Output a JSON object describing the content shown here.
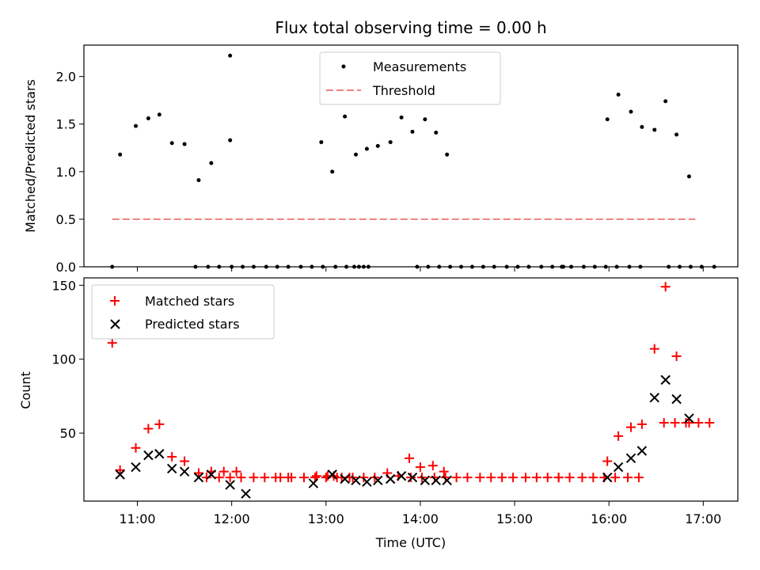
{
  "chart_data": [
    {
      "type": "scatter",
      "title": "Flux total observing time = 0.00 h",
      "ylabel": "Matched/Predicted stars",
      "xlabel": "",
      "ylim": [
        0,
        2.33
      ],
      "y_ticks": [
        0.0,
        0.5,
        1.0,
        1.5,
        2.0
      ],
      "y_tick_labels": [
        "0.0",
        "0.5",
        "1.0",
        "1.5",
        "2.0"
      ],
      "legend_position": "top-center",
      "grid": false,
      "series": [
        {
          "name": "Measurements",
          "marker": "dot",
          "color": "#000000",
          "points": [
            [
              "10:44",
              0.0
            ],
            [
              "10:49",
              1.18
            ],
            [
              "10:59",
              1.48
            ],
            [
              "11:07",
              1.56
            ],
            [
              "11:14",
              1.6
            ],
            [
              "11:22",
              1.3
            ],
            [
              "11:30",
              1.29
            ],
            [
              "11:39",
              0.91
            ],
            [
              "11:47",
              1.09
            ],
            [
              "11:37",
              0.0
            ],
            [
              "11:45",
              0.0
            ],
            [
              "11:52",
              0.0
            ],
            [
              "12:00",
              0.0
            ],
            [
              "12:07",
              0.0
            ],
            [
              "12:14",
              0.0
            ],
            [
              "12:22",
              0.0
            ],
            [
              "11:59",
              1.33
            ],
            [
              "11:59",
              2.22
            ],
            [
              "12:29",
              0.0
            ],
            [
              "12:36",
              0.0
            ],
            [
              "12:44",
              0.0
            ],
            [
              "12:51",
              0.0
            ],
            [
              "12:58",
              0.0
            ],
            [
              "13:06",
              0.0
            ],
            [
              "13:13",
              0.0
            ],
            [
              "13:18",
              0.0
            ],
            [
              "13:21",
              0.0
            ],
            [
              "13:24",
              0.0
            ],
            [
              "13:27",
              0.0
            ],
            [
              "12:57",
              1.31
            ],
            [
              "13:04",
              1.0
            ],
            [
              "13:12",
              1.58
            ],
            [
              "13:19",
              1.18
            ],
            [
              "13:26",
              1.24
            ],
            [
              "13:33",
              1.27
            ],
            [
              "13:41",
              1.31
            ],
            [
              "13:48",
              1.57
            ],
            [
              "13:55",
              1.42
            ],
            [
              "14:03",
              1.55
            ],
            [
              "14:10",
              1.41
            ],
            [
              "14:17",
              1.18
            ],
            [
              "13:58",
              0.0
            ],
            [
              "14:05",
              0.0
            ],
            [
              "14:12",
              0.0
            ],
            [
              "14:19",
              0.0
            ],
            [
              "14:26",
              0.0
            ],
            [
              "14:33",
              0.0
            ],
            [
              "14:40",
              0.0
            ],
            [
              "14:47",
              0.0
            ],
            [
              "14:55",
              0.0
            ],
            [
              "15:02",
              0.0
            ],
            [
              "15:09",
              0.0
            ],
            [
              "15:17",
              0.0
            ],
            [
              "15:24",
              0.0
            ],
            [
              "15:31",
              0.0
            ],
            [
              "15:30",
              0.0
            ],
            [
              "15:36",
              0.0
            ],
            [
              "15:44",
              0.0
            ],
            [
              "15:51",
              0.0
            ],
            [
              "15:58",
              0.0
            ],
            [
              "16:05",
              0.0
            ],
            [
              "16:13",
              0.0
            ],
            [
              "16:20",
              0.0
            ],
            [
              "15:59",
              1.55
            ],
            [
              "16:06",
              1.81
            ],
            [
              "16:14",
              1.63
            ],
            [
              "16:21",
              1.47
            ],
            [
              "16:29",
              1.44
            ],
            [
              "16:36",
              1.74
            ],
            [
              "16:43",
              1.39
            ],
            [
              "16:51",
              0.95
            ],
            [
              "16:38",
              0.0
            ],
            [
              "16:45",
              0.0
            ],
            [
              "16:52",
              0.0
            ],
            [
              "16:59",
              0.0
            ],
            [
              "17:07",
              0.0
            ]
          ]
        },
        {
          "name": "Threshold",
          "marker": "dashed-line",
          "color": "#f08080",
          "points": [
            [
              "10:44",
              0.5
            ],
            [
              "16:55",
              0.5
            ]
          ]
        }
      ]
    },
    {
      "type": "scatter",
      "xlabel": "Time (UTC)",
      "ylabel": "Count",
      "xlim": [
        "10:26",
        "17:22"
      ],
      "ylim": [
        4,
        155
      ],
      "x_tick_labels": [
        "11:00",
        "12:00",
        "13:00",
        "14:00",
        "15:00",
        "16:00",
        "17:00"
      ],
      "y_ticks": [
        50,
        100,
        150
      ],
      "y_tick_labels": [
        "50",
        "100",
        "150"
      ],
      "legend_position": "top-left",
      "grid": false,
      "series": [
        {
          "name": "Matched stars",
          "marker": "plus",
          "color": "#ff0000",
          "points": [
            [
              "10:44",
              111
            ],
            [
              "10:49",
              25
            ],
            [
              "10:59",
              40
            ],
            [
              "11:07",
              53
            ],
            [
              "11:14",
              56
            ],
            [
              "11:22",
              34
            ],
            [
              "11:30",
              31
            ],
            [
              "11:39",
              23
            ],
            [
              "11:47",
              24
            ],
            [
              "11:55",
              24
            ],
            [
              "12:03",
              24
            ],
            [
              "11:44",
              20
            ],
            [
              "11:52",
              20
            ],
            [
              "11:59",
              20
            ],
            [
              "12:06",
              20
            ],
            [
              "12:14",
              20
            ],
            [
              "12:21",
              20
            ],
            [
              "12:28",
              20
            ],
            [
              "12:36",
              20
            ],
            [
              "12:31",
              20
            ],
            [
              "12:38",
              20
            ],
            [
              "12:46",
              20
            ],
            [
              "12:53",
              20
            ],
            [
              "13:00",
              20
            ],
            [
              "13:07",
              20
            ],
            [
              "13:15",
              20
            ],
            [
              "12:54",
              21
            ],
            [
              "13:01",
              21
            ],
            [
              "13:05",
              21
            ],
            [
              "13:10",
              20
            ],
            [
              "13:17",
              20
            ],
            [
              "13:24",
              20
            ],
            [
              "13:31",
              20
            ],
            [
              "13:39",
              23
            ],
            [
              "13:46",
              21
            ],
            [
              "13:53",
              33
            ],
            [
              "14:00",
              27
            ],
            [
              "14:08",
              28
            ],
            [
              "14:15",
              24
            ],
            [
              "13:54",
              20
            ],
            [
              "14:01",
              20
            ],
            [
              "14:09",
              20
            ],
            [
              "14:16",
              20
            ],
            [
              "14:23",
              20
            ],
            [
              "14:30",
              20
            ],
            [
              "14:38",
              20
            ],
            [
              "14:45",
              20
            ],
            [
              "14:52",
              20
            ],
            [
              "14:59",
              20
            ],
            [
              "15:07",
              20
            ],
            [
              "15:14",
              20
            ],
            [
              "15:21",
              20
            ],
            [
              "15:28",
              20
            ],
            [
              "15:28",
              20
            ],
            [
              "15:35",
              20
            ],
            [
              "15:43",
              20
            ],
            [
              "15:50",
              20
            ],
            [
              "15:57",
              20
            ],
            [
              "16:04",
              20
            ],
            [
              "16:12",
              20
            ],
            [
              "16:19",
              20
            ],
            [
              "15:59",
              31
            ],
            [
              "16:06",
              48
            ],
            [
              "16:14",
              54
            ],
            [
              "16:21",
              56
            ],
            [
              "16:29",
              107
            ],
            [
              "16:36",
              149
            ],
            [
              "16:43",
              102
            ],
            [
              "16:51",
              57
            ],
            [
              "16:35",
              57
            ],
            [
              "16:42",
              57
            ],
            [
              "16:49",
              57
            ],
            [
              "16:57",
              57
            ],
            [
              "17:04",
              57
            ]
          ]
        },
        {
          "name": "Predicted stars",
          "marker": "x",
          "color": "#000000",
          "points": [
            [
              "10:49",
              22
            ],
            [
              "10:59",
              27
            ],
            [
              "11:07",
              35
            ],
            [
              "11:14",
              36
            ],
            [
              "11:22",
              26
            ],
            [
              "11:30",
              24
            ],
            [
              "11:39",
              20
            ],
            [
              "11:47",
              22
            ],
            [
              "11:59",
              15
            ],
            [
              "12:09",
              9
            ],
            [
              "12:52",
              16
            ],
            [
              "13:04",
              22
            ],
            [
              "13:12",
              19
            ],
            [
              "13:19",
              18
            ],
            [
              "13:26",
              17
            ],
            [
              "13:33",
              18
            ],
            [
              "13:41",
              19
            ],
            [
              "13:48",
              21
            ],
            [
              "13:55",
              20
            ],
            [
              "14:03",
              18
            ],
            [
              "14:10",
              18
            ],
            [
              "14:17",
              18
            ],
            [
              "15:59",
              20
            ],
            [
              "16:06",
              27
            ],
            [
              "16:14",
              33
            ],
            [
              "16:21",
              38
            ],
            [
              "16:29",
              74
            ],
            [
              "16:36",
              86
            ],
            [
              "16:43",
              73
            ],
            [
              "16:51",
              60
            ]
          ]
        }
      ]
    }
  ]
}
